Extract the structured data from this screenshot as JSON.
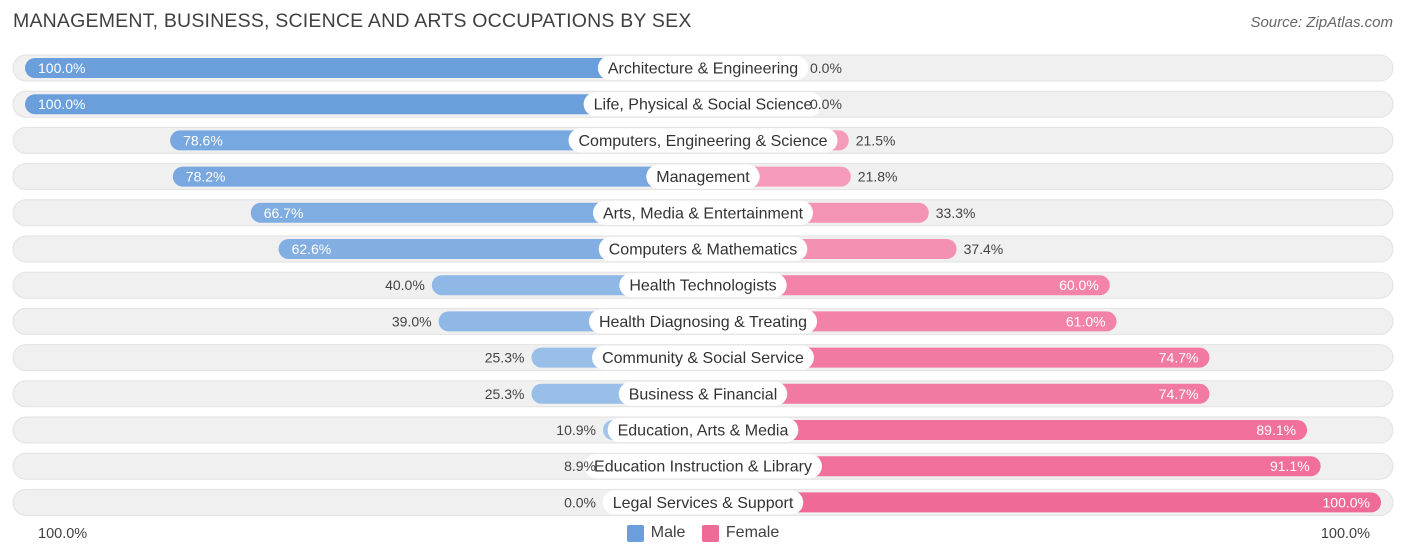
{
  "title": "MANAGEMENT, BUSINESS, SCIENCE AND ARTS OCCUPATIONS BY SEX",
  "source": "Source: ZipAtlas.com",
  "colors": {
    "male_strong": "#6a9fdc",
    "male_light": "#a9c8ec",
    "female_strong": "#f06a97",
    "female_light": "#f7a8c4",
    "track": "#f0f0f0"
  },
  "legend": {
    "male": "Male",
    "female": "Female"
  },
  "axis": {
    "left_label": "100.0%",
    "right_label": "100.0%"
  },
  "chart_data": {
    "type": "bar",
    "orientation": "horizontal-diverging",
    "title": "MANAGEMENT, BUSINESS, SCIENCE AND ARTS OCCUPATIONS BY SEX",
    "xlim": [
      -100,
      100
    ],
    "categories": [
      "Architecture & Engineering",
      "Life, Physical & Social Science",
      "Computers, Engineering & Science",
      "Management",
      "Arts, Media & Entertainment",
      "Computers & Mathematics",
      "Health Technologists",
      "Health Diagnosing & Treating",
      "Community & Social Service",
      "Business & Financial",
      "Education, Arts & Media",
      "Education Instruction & Library",
      "Legal Services & Support"
    ],
    "series": [
      {
        "name": "Male",
        "values": [
          100.0,
          100.0,
          78.6,
          78.2,
          66.7,
          62.6,
          40.0,
          39.0,
          25.3,
          25.3,
          10.9,
          8.9,
          0.0
        ],
        "labels": [
          "100.0%",
          "100.0%",
          "78.6%",
          "78.2%",
          "66.7%",
          "62.6%",
          "40.0%",
          "39.0%",
          "25.3%",
          "25.3%",
          "10.9%",
          "8.9%",
          "0.0%"
        ]
      },
      {
        "name": "Female",
        "values": [
          0.0,
          0.0,
          21.5,
          21.8,
          33.3,
          37.4,
          60.0,
          61.0,
          74.7,
          74.7,
          89.1,
          91.1,
          100.0
        ],
        "labels": [
          "0.0%",
          "0.0%",
          "21.5%",
          "21.8%",
          "33.3%",
          "37.4%",
          "60.0%",
          "61.0%",
          "74.7%",
          "74.7%",
          "89.1%",
          "91.1%",
          "100.0%"
        ]
      }
    ]
  }
}
